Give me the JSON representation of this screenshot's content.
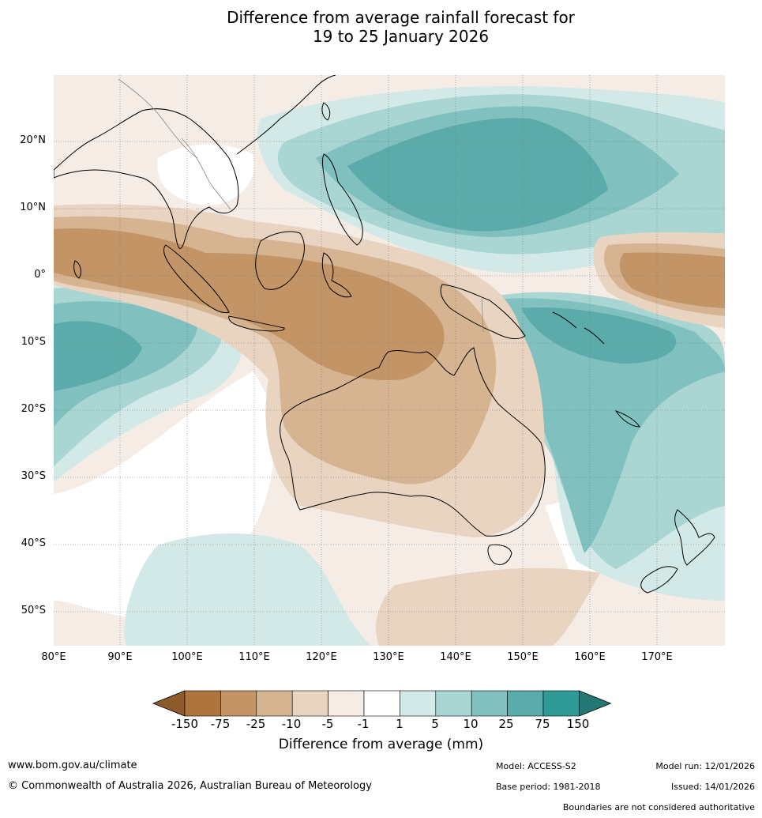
{
  "title": {
    "line1": "Difference from average rainfall forecast for",
    "line2": "19 to 25 January 2026"
  },
  "map": {
    "lat_labels": [
      "20°N",
      "10°N",
      "0°",
      "10°S",
      "20°S",
      "30°S",
      "40°S",
      "50°S"
    ],
    "lat_values": [
      20,
      10,
      0,
      -10,
      -20,
      -30,
      -40,
      -50
    ],
    "lon_labels": [
      "80°E",
      "90°E",
      "100°E",
      "110°E",
      "120°E",
      "130°E",
      "140°E",
      "150°E",
      "160°E",
      "170°E"
    ],
    "lon_values": [
      80,
      90,
      100,
      110,
      120,
      130,
      140,
      150,
      160,
      170
    ],
    "extent": {
      "lon_min": 80,
      "lon_max": 180,
      "lat_min": -55,
      "lat_max": 30
    }
  },
  "colorbar": {
    "title": "Difference from average (mm)",
    "ticks": [
      "-150",
      "-75",
      "-25",
      "-10",
      "-5",
      "-1",
      "1",
      "5",
      "10",
      "25",
      "75",
      "150"
    ],
    "colors": [
      "#8c5a2b",
      "#ae743e",
      "#c39465",
      "#d7b491",
      "#e8d4c0",
      "#f5ece6",
      "#ffffff",
      "#d2e9e7",
      "#a9d5d3",
      "#80c0bf",
      "#5aabaa",
      "#2f9995",
      "#237875"
    ]
  },
  "footer": {
    "website": "www.bom.gov.au/climate",
    "copyright": "© Commonwealth of Australia 2026, Australian Bureau of Meteorology",
    "model": "Model: ACCESS-S2",
    "base_period": "Base period: 1981-2018",
    "model_run": "Model run: 12/01/2026",
    "issued": "Issued: 14/01/2026",
    "disclaimer": "Boundaries are not considered authoritative"
  }
}
